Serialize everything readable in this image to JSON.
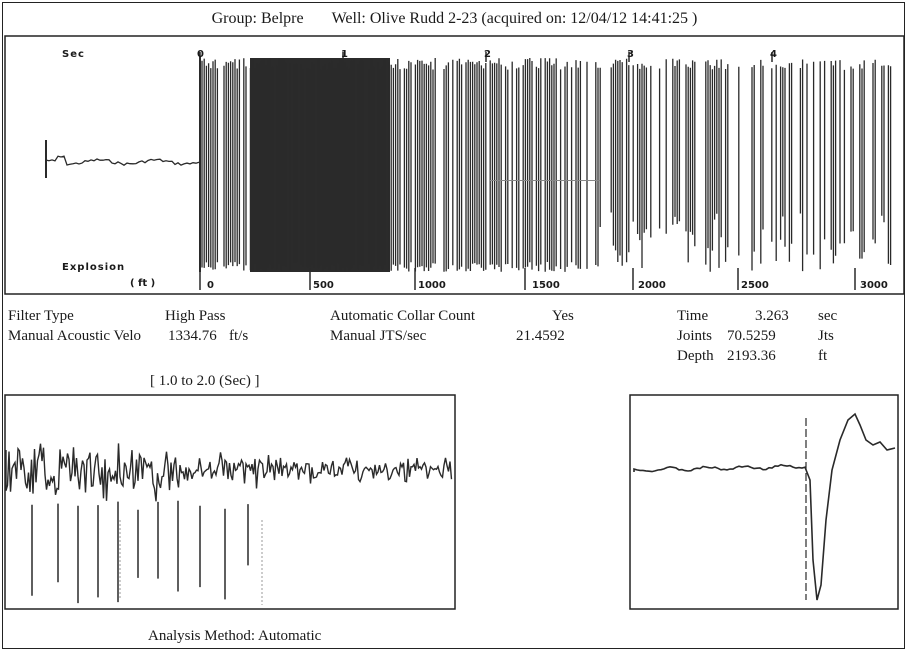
{
  "header": {
    "group": "Group: Belpre",
    "well": "Well: Olive Rudd 2-23 (acquired on: 12/04/12 14:41:25 )"
  },
  "trace_panel": {
    "axis_top_label": "Sec",
    "time_ticks": [
      "0",
      "1",
      "2",
      "3",
      "4"
    ],
    "marker_label": "Explosion",
    "axis_bottom_label": "( ft )",
    "depth_ticks": [
      "0",
      "500",
      "1000",
      "1500",
      "2000",
      "2500",
      "3000"
    ]
  },
  "params": {
    "filter_type_label": "Filter Type",
    "filter_type_value": "High Pass",
    "velocity_label": "Manual Acoustic Velo",
    "velocity_value": "1334.76",
    "velocity_unit": "ft/s",
    "collar_label": "Automatic Collar Count",
    "collar_value": "Yes",
    "jts_label": "Manual JTS/sec",
    "jts_value": "21.4592"
  },
  "results": {
    "time_label": "Time",
    "time_value": "3.263",
    "time_unit": "sec",
    "joints_label": "Joints",
    "joints_value": "70.5259",
    "joints_unit": "Jts",
    "depth_label": "Depth",
    "depth_value": "2193.36",
    "depth_unit": "ft"
  },
  "zoom_panel": {
    "range_label": "[ 1.0  to  2.0 (Sec) ]"
  },
  "footer": {
    "analysis_method": "Analysis Method:   Automatic"
  },
  "chart_data": {
    "type": "line",
    "x_axis_top": {
      "label": "Sec",
      "ticks": [
        0,
        1,
        2,
        3,
        4
      ]
    },
    "x_axis_bottom": {
      "label": "( ft )",
      "ticks": [
        0,
        500,
        1000,
        1500,
        2000,
        2500,
        3000
      ]
    },
    "annotations": [
      "Explosion"
    ],
    "colors": {
      "trace": "#2a2a2a",
      "background": "#ffffff"
    }
  }
}
